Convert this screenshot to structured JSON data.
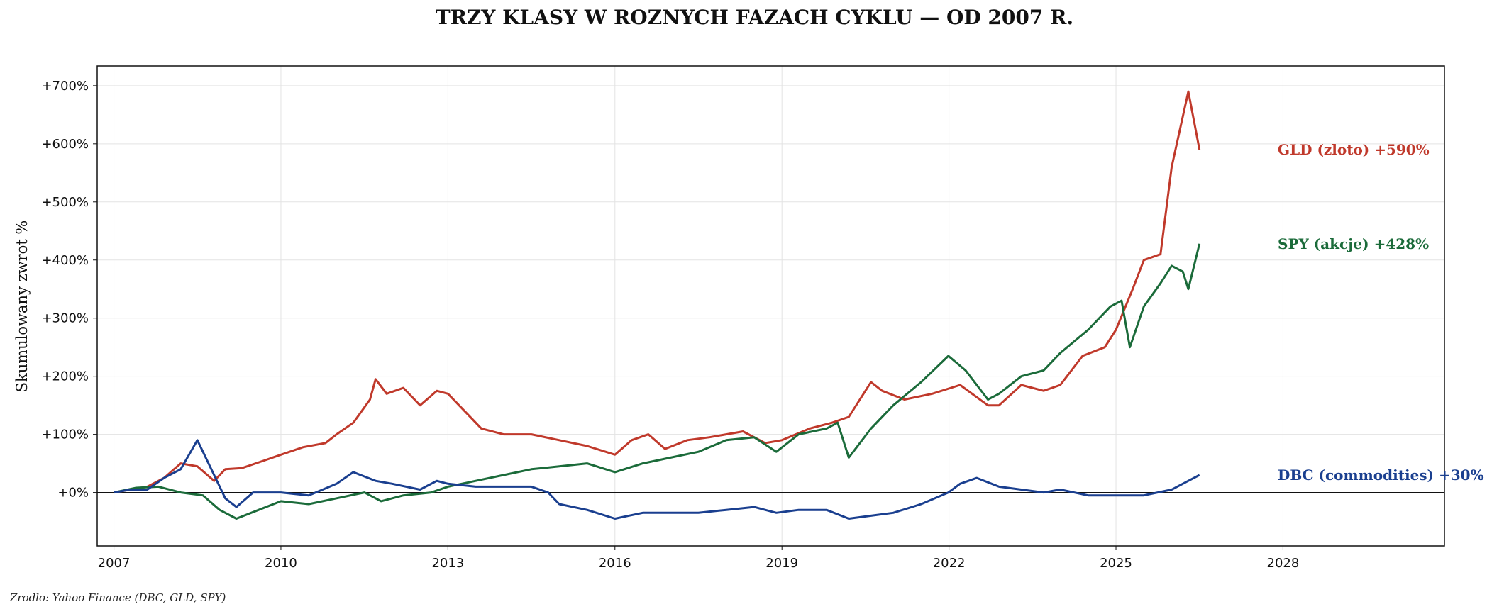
{
  "chart_data": {
    "type": "line",
    "title": "TRZY KLASY W ROZNYCH FAZACH CYKLU — OD 2007 R.",
    "ylabel": "Skumulowany zwrot %",
    "xlabel": "",
    "source": "Zrodlo: Yahoo Finance (DBC, GLD, SPY)",
    "xlim": [
      2006.7,
      2030.9
    ],
    "ylim": [
      -92,
      734
    ],
    "x_ticks": [
      "2007",
      "2010",
      "2013",
      "2016",
      "2019",
      "2022",
      "2025",
      "2028"
    ],
    "x_tick_values": [
      2007,
      2010,
      2013,
      2016,
      2019,
      2022,
      2025,
      2028
    ],
    "y_ticks": [
      "+0%",
      "+100%",
      "+200%",
      "+300%",
      "+400%",
      "+500%",
      "+600%",
      "+700%"
    ],
    "y_tick_values": [
      0,
      100,
      200,
      300,
      400,
      500,
      600,
      700
    ],
    "grid": true,
    "zero_line": true,
    "series": [
      {
        "name": "GLD (zloto)",
        "end_label": "GLD (zloto)  +590%",
        "color": "#c0392b",
        "points": [
          [
            2007.0,
            0
          ],
          [
            2007.3,
            5
          ],
          [
            2007.6,
            10
          ],
          [
            2007.9,
            25
          ],
          [
            2008.2,
            50
          ],
          [
            2008.5,
            45
          ],
          [
            2008.8,
            20
          ],
          [
            2009.0,
            40
          ],
          [
            2009.3,
            42
          ],
          [
            2009.7,
            55
          ],
          [
            2010.0,
            65
          ],
          [
            2010.4,
            78
          ],
          [
            2010.8,
            85
          ],
          [
            2011.0,
            100
          ],
          [
            2011.3,
            120
          ],
          [
            2011.6,
            160
          ],
          [
            2011.7,
            195
          ],
          [
            2011.9,
            170
          ],
          [
            2012.2,
            180
          ],
          [
            2012.5,
            150
          ],
          [
            2012.8,
            175
          ],
          [
            2013.0,
            170
          ],
          [
            2013.3,
            140
          ],
          [
            2013.6,
            110
          ],
          [
            2014.0,
            100
          ],
          [
            2014.5,
            100
          ],
          [
            2015.0,
            90
          ],
          [
            2015.5,
            80
          ],
          [
            2016.0,
            65
          ],
          [
            2016.3,
            90
          ],
          [
            2016.6,
            100
          ],
          [
            2016.9,
            75
          ],
          [
            2017.3,
            90
          ],
          [
            2017.7,
            95
          ],
          [
            2018.0,
            100
          ],
          [
            2018.3,
            105
          ],
          [
            2018.7,
            85
          ],
          [
            2019.0,
            90
          ],
          [
            2019.5,
            110
          ],
          [
            2019.9,
            120
          ],
          [
            2020.2,
            130
          ],
          [
            2020.6,
            190
          ],
          [
            2020.8,
            175
          ],
          [
            2021.2,
            160
          ],
          [
            2021.7,
            170
          ],
          [
            2022.2,
            185
          ],
          [
            2022.7,
            150
          ],
          [
            2022.9,
            150
          ],
          [
            2023.3,
            185
          ],
          [
            2023.7,
            175
          ],
          [
            2024.0,
            185
          ],
          [
            2024.4,
            235
          ],
          [
            2024.8,
            250
          ],
          [
            2025.0,
            280
          ],
          [
            2025.3,
            350
          ],
          [
            2025.5,
            400
          ],
          [
            2025.8,
            410
          ],
          [
            2026.0,
            560
          ],
          [
            2026.3,
            690
          ],
          [
            2026.5,
            590
          ]
        ]
      },
      {
        "name": "SPY (akcje)",
        "end_label": "SPY (akcje)  +428%",
        "color": "#1b6b3a",
        "points": [
          [
            2007.0,
            0
          ],
          [
            2007.4,
            8
          ],
          [
            2007.8,
            10
          ],
          [
            2008.2,
            0
          ],
          [
            2008.6,
            -5
          ],
          [
            2008.9,
            -30
          ],
          [
            2009.2,
            -45
          ],
          [
            2009.6,
            -30
          ],
          [
            2010.0,
            -15
          ],
          [
            2010.5,
            -20
          ],
          [
            2011.0,
            -10
          ],
          [
            2011.5,
            0
          ],
          [
            2011.8,
            -15
          ],
          [
            2012.2,
            -5
          ],
          [
            2012.7,
            0
          ],
          [
            2013.0,
            10
          ],
          [
            2013.5,
            20
          ],
          [
            2014.0,
            30
          ],
          [
            2014.5,
            40
          ],
          [
            2015.0,
            45
          ],
          [
            2015.5,
            50
          ],
          [
            2016.0,
            35
          ],
          [
            2016.5,
            50
          ],
          [
            2017.0,
            60
          ],
          [
            2017.5,
            70
          ],
          [
            2018.0,
            90
          ],
          [
            2018.5,
            95
          ],
          [
            2018.9,
            70
          ],
          [
            2019.3,
            100
          ],
          [
            2019.8,
            110
          ],
          [
            2020.0,
            120
          ],
          [
            2020.2,
            60
          ],
          [
            2020.6,
            110
          ],
          [
            2021.0,
            150
          ],
          [
            2021.5,
            190
          ],
          [
            2021.99,
            235
          ],
          [
            2022.3,
            210
          ],
          [
            2022.7,
            160
          ],
          [
            2022.9,
            170
          ],
          [
            2023.3,
            200
          ],
          [
            2023.7,
            210
          ],
          [
            2024.0,
            240
          ],
          [
            2024.5,
            280
          ],
          [
            2024.9,
            320
          ],
          [
            2025.1,
            330
          ],
          [
            2025.25,
            250
          ],
          [
            2025.5,
            320
          ],
          [
            2025.8,
            360
          ],
          [
            2026.0,
            390
          ],
          [
            2026.2,
            380
          ],
          [
            2026.3,
            350
          ],
          [
            2026.5,
            428
          ]
        ]
      },
      {
        "name": "DBC (commodities)",
        "end_label": "DBC (commodities)  +30%",
        "color": "#1a3f8f",
        "points": [
          [
            2007.0,
            0
          ],
          [
            2007.3,
            5
          ],
          [
            2007.6,
            5
          ],
          [
            2007.9,
            25
          ],
          [
            2008.2,
            40
          ],
          [
            2008.5,
            90
          ],
          [
            2008.8,
            30
          ],
          [
            2009.0,
            -10
          ],
          [
            2009.2,
            -25
          ],
          [
            2009.5,
            0
          ],
          [
            2010.0,
            0
          ],
          [
            2010.5,
            -5
          ],
          [
            2011.0,
            15
          ],
          [
            2011.3,
            35
          ],
          [
            2011.7,
            20
          ],
          [
            2012.0,
            15
          ],
          [
            2012.5,
            5
          ],
          [
            2012.8,
            20
          ],
          [
            2013.0,
            15
          ],
          [
            2013.5,
            10
          ],
          [
            2014.0,
            10
          ],
          [
            2014.5,
            10
          ],
          [
            2014.8,
            0
          ],
          [
            2015.0,
            -20
          ],
          [
            2015.5,
            -30
          ],
          [
            2016.0,
            -45
          ],
          [
            2016.5,
            -35
          ],
          [
            2017.0,
            -35
          ],
          [
            2017.5,
            -35
          ],
          [
            2018.0,
            -30
          ],
          [
            2018.5,
            -25
          ],
          [
            2018.9,
            -35
          ],
          [
            2019.3,
            -30
          ],
          [
            2019.8,
            -30
          ],
          [
            2020.2,
            -45
          ],
          [
            2020.6,
            -40
          ],
          [
            2021.0,
            -35
          ],
          [
            2021.5,
            -20
          ],
          [
            2021.99,
            0
          ],
          [
            2022.2,
            15
          ],
          [
            2022.5,
            25
          ],
          [
            2022.9,
            10
          ],
          [
            2023.3,
            5
          ],
          [
            2023.7,
            0
          ],
          [
            2024.0,
            5
          ],
          [
            2024.5,
            -5
          ],
          [
            2025.0,
            -5
          ],
          [
            2025.5,
            -5
          ],
          [
            2026.0,
            5
          ],
          [
            2026.3,
            20
          ],
          [
            2026.5,
            30
          ]
        ]
      }
    ]
  }
}
